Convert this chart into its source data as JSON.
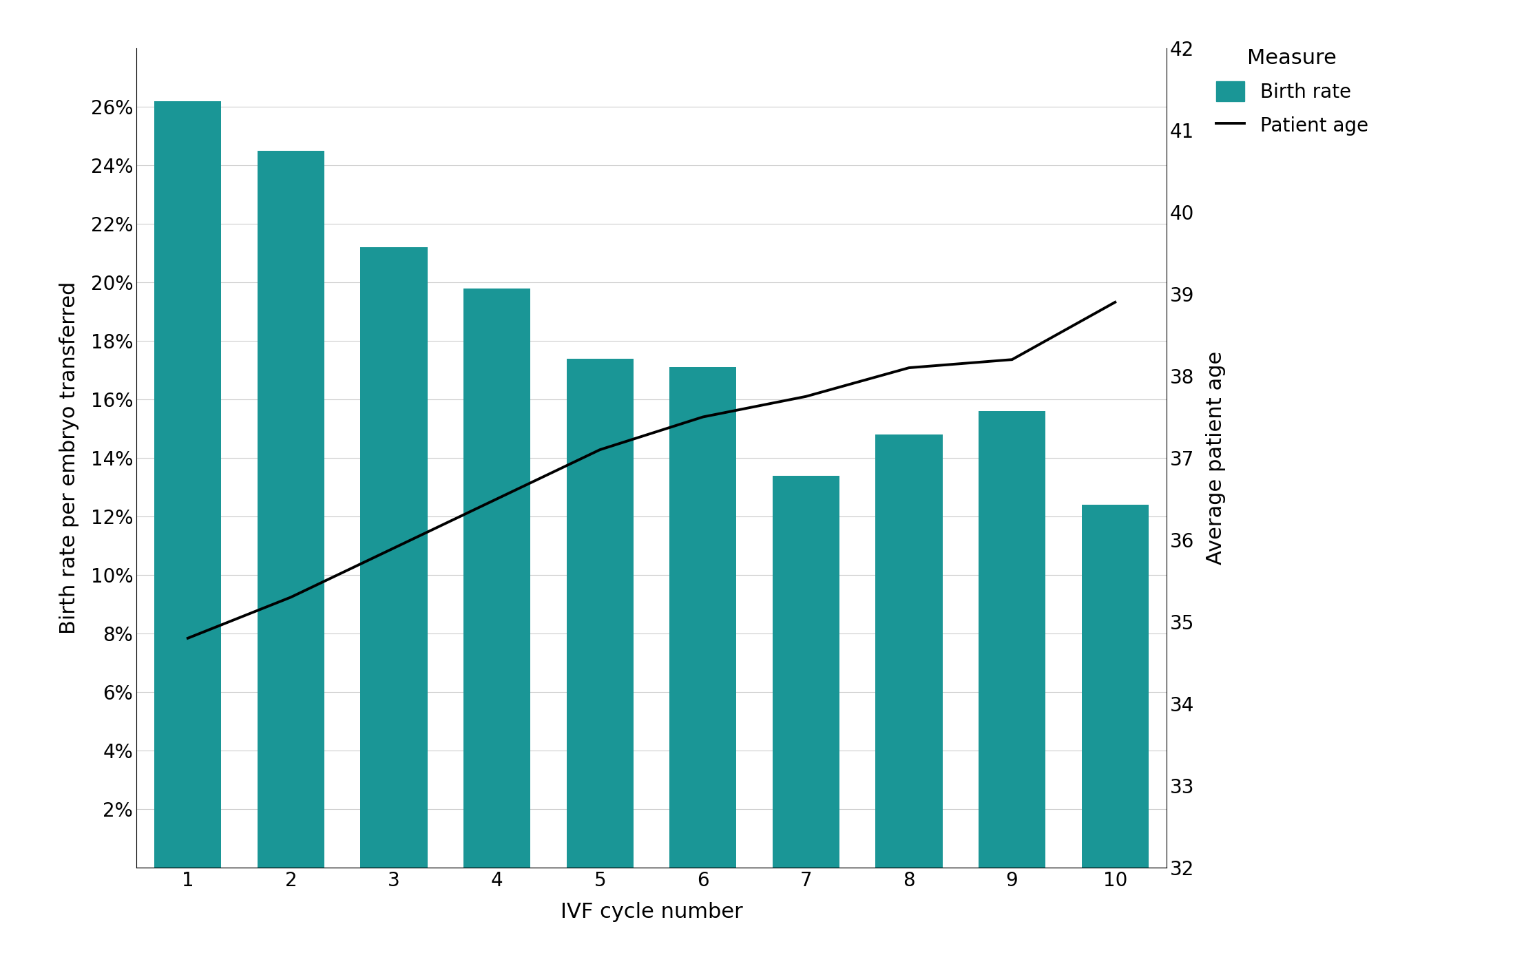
{
  "cycles": [
    1,
    2,
    3,
    4,
    5,
    6,
    7,
    8,
    9,
    10
  ],
  "birth_rates": [
    0.262,
    0.245,
    0.212,
    0.198,
    0.174,
    0.171,
    0.134,
    0.148,
    0.156,
    0.124
  ],
  "patient_ages": [
    34.8,
    35.3,
    35.9,
    36.5,
    37.1,
    37.5,
    37.75,
    38.1,
    38.2,
    38.9
  ],
  "bar_color": "#1a9696",
  "line_color": "#000000",
  "background_color": "#ffffff",
  "xlabel": "IVF cycle number",
  "ylabel_left": "Birth rate per embryo transferred",
  "ylabel_right": "Average patient age",
  "ylim_left": [
    0,
    0.28
  ],
  "ylim_right": [
    32,
    42
  ],
  "yticks_left": [
    0.02,
    0.04,
    0.06,
    0.08,
    0.1,
    0.12,
    0.14,
    0.16,
    0.18,
    0.2,
    0.22,
    0.24,
    0.26
  ],
  "yticks_right": [
    32,
    33,
    34,
    35,
    36,
    37,
    38,
    39,
    40,
    41,
    42
  ],
  "legend_title": "Measure",
  "legend_bar_label": "Birth rate",
  "legend_line_label": "Patient age",
  "xlabel_fontsize": 22,
  "ylabel_fontsize": 22,
  "tick_fontsize": 20,
  "legend_fontsize": 20,
  "legend_title_fontsize": 22,
  "line_width": 2.8,
  "bar_width": 0.65
}
